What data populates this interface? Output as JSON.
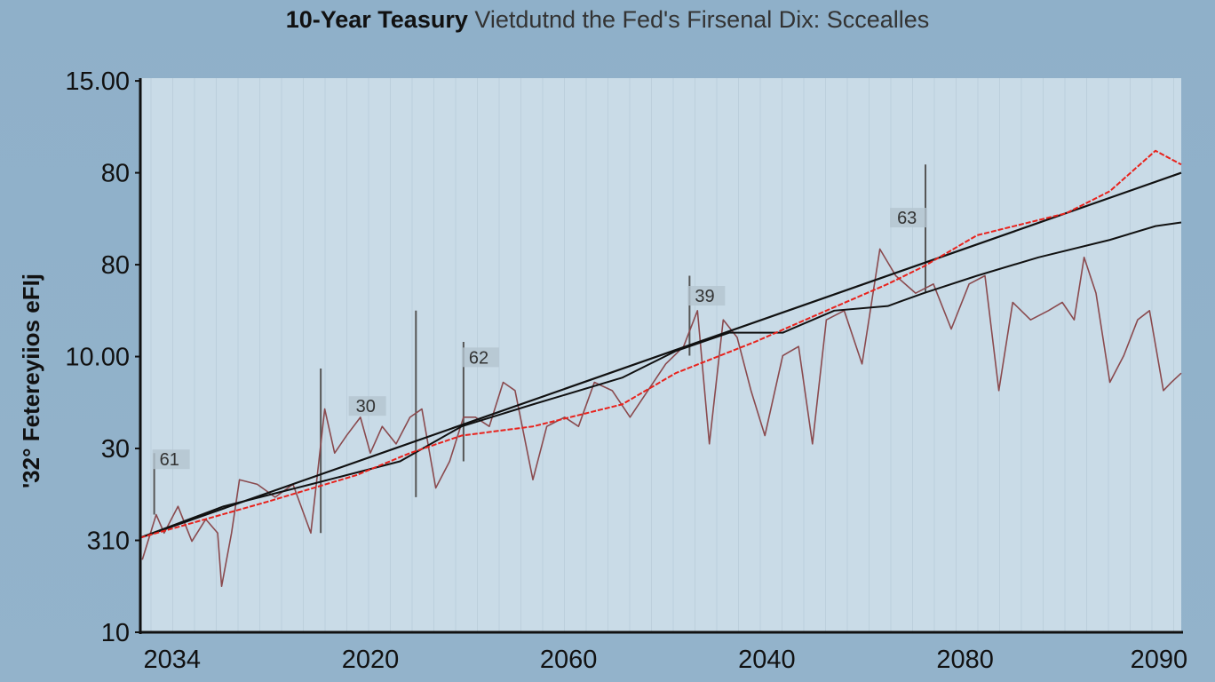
{
  "chart_data": {
    "type": "line",
    "title": "10-Year Teasury",
    "title_rest": "Vietdutnd the Fed's Firsenal Dix: Sccealles",
    "ylabel": "'32° Fetereyiios eFIj",
    "xlabel": "",
    "x_ticks": [
      {
        "v": 0,
        "label": "2034"
      },
      {
        "v": 1,
        "label": "2020"
      },
      {
        "v": 2,
        "label": "2060"
      },
      {
        "v": 3,
        "label": "2040"
      },
      {
        "v": 4,
        "label": "2080"
      },
      {
        "v": 5,
        "label": "2090"
      }
    ],
    "y_ticks": [
      {
        "v": 0,
        "label": "10"
      },
      {
        "v": 1,
        "label": "310"
      },
      {
        "v": 2,
        "label": "30"
      },
      {
        "v": 3,
        "label": "10.00"
      },
      {
        "v": 4,
        "label": "80"
      },
      {
        "v": 5,
        "label": "80"
      },
      {
        "v": 6,
        "label": "15.00"
      }
    ],
    "xlim": [
      -0.16,
      5.09
    ],
    "ylim": [
      0,
      6.03
    ],
    "grid": "vertical",
    "series": [
      {
        "name": "noisy-yield",
        "color": "#8a4a4e",
        "points": [
          [
            -0.15,
            0.79
          ],
          [
            -0.08,
            1.28
          ],
          [
            -0.04,
            1.08
          ],
          [
            0.03,
            1.37
          ],
          [
            0.1,
            0.99
          ],
          [
            0.17,
            1.23
          ],
          [
            0.23,
            1.08
          ],
          [
            0.25,
            0.5
          ],
          [
            0.3,
            1.08
          ],
          [
            0.34,
            1.66
          ],
          [
            0.43,
            1.61
          ],
          [
            0.52,
            1.47
          ],
          [
            0.61,
            1.61
          ],
          [
            0.7,
            1.08
          ],
          [
            0.77,
            2.43
          ],
          [
            0.82,
            1.95
          ],
          [
            0.88,
            2.14
          ],
          [
            0.95,
            2.34
          ],
          [
            1.0,
            1.95
          ],
          [
            1.06,
            2.24
          ],
          [
            1.13,
            2.05
          ],
          [
            1.2,
            2.34
          ],
          [
            1.26,
            2.43
          ],
          [
            1.33,
            1.57
          ],
          [
            1.4,
            1.86
          ],
          [
            1.47,
            2.34
          ],
          [
            1.53,
            2.34
          ],
          [
            1.6,
            2.24
          ],
          [
            1.67,
            2.72
          ],
          [
            1.73,
            2.63
          ],
          [
            1.82,
            1.66
          ],
          [
            1.89,
            2.24
          ],
          [
            1.98,
            2.34
          ],
          [
            2.05,
            2.24
          ],
          [
            2.13,
            2.72
          ],
          [
            2.22,
            2.63
          ],
          [
            2.31,
            2.34
          ],
          [
            2.4,
            2.63
          ],
          [
            2.49,
            2.92
          ],
          [
            2.58,
            3.11
          ],
          [
            2.65,
            3.5
          ],
          [
            2.71,
            2.05
          ],
          [
            2.78,
            3.4
          ],
          [
            2.85,
            3.21
          ],
          [
            2.92,
            2.63
          ],
          [
            2.99,
            2.14
          ],
          [
            3.08,
            3.01
          ],
          [
            3.16,
            3.11
          ],
          [
            3.23,
            2.05
          ],
          [
            3.3,
            3.4
          ],
          [
            3.39,
            3.5
          ],
          [
            3.48,
            2.92
          ],
          [
            3.57,
            4.17
          ],
          [
            3.65,
            3.88
          ],
          [
            3.75,
            3.69
          ],
          [
            3.84,
            3.79
          ],
          [
            3.93,
            3.3
          ],
          [
            4.02,
            3.79
          ],
          [
            4.1,
            3.88
          ],
          [
            4.17,
            2.63
          ],
          [
            4.24,
            3.59
          ],
          [
            4.33,
            3.4
          ],
          [
            4.42,
            3.5
          ],
          [
            4.49,
            3.59
          ],
          [
            4.55,
            3.4
          ],
          [
            4.6,
            4.08
          ],
          [
            4.66,
            3.69
          ],
          [
            4.73,
            2.72
          ],
          [
            4.8,
            3.01
          ],
          [
            4.87,
            3.4
          ],
          [
            4.93,
            3.5
          ],
          [
            5.0,
            2.63
          ],
          [
            5.04,
            2.72
          ],
          [
            5.09,
            2.82
          ]
        ]
      },
      {
        "name": "red-line",
        "color": "#e8221c",
        "points": [
          [
            -0.16,
            1.03
          ],
          [
            0.48,
            1.42
          ],
          [
            0.93,
            1.71
          ],
          [
            1.2,
            1.95
          ],
          [
            1.46,
            2.14
          ],
          [
            1.82,
            2.24
          ],
          [
            2.27,
            2.48
          ],
          [
            2.54,
            2.82
          ],
          [
            2.94,
            3.16
          ],
          [
            3.3,
            3.5
          ],
          [
            3.61,
            3.79
          ],
          [
            3.79,
            3.98
          ],
          [
            4.06,
            4.32
          ],
          [
            4.51,
            4.56
          ],
          [
            4.73,
            4.8
          ],
          [
            4.96,
            5.24
          ],
          [
            5.09,
            5.09
          ]
        ]
      },
      {
        "name": "black-line",
        "color": "#111111",
        "points": [
          [
            -0.16,
            1.03
          ],
          [
            0.26,
            1.37
          ],
          [
            0.7,
            1.61
          ],
          [
            1.15,
            1.86
          ],
          [
            1.46,
            2.24
          ],
          [
            1.82,
            2.48
          ],
          [
            2.27,
            2.77
          ],
          [
            2.54,
            3.06
          ],
          [
            2.81,
            3.26
          ],
          [
            3.08,
            3.26
          ],
          [
            3.34,
            3.5
          ],
          [
            3.61,
            3.55
          ],
          [
            3.79,
            3.69
          ],
          [
            4.06,
            3.88
          ],
          [
            4.37,
            4.08
          ],
          [
            4.73,
            4.27
          ],
          [
            4.96,
            4.42
          ],
          [
            5.09,
            4.46
          ]
        ]
      },
      {
        "name": "trend-line",
        "color": "#111111",
        "points": [
          [
            -0.16,
            1.03
          ],
          [
            5.09,
            5.0
          ]
        ]
      }
    ],
    "spikes": [
      [
        -0.09,
        1.95,
        1.28
      ],
      [
        0.75,
        2.87,
        1.08
      ],
      [
        1.23,
        3.5,
        1.47
      ],
      [
        1.47,
        3.16,
        1.86
      ],
      [
        2.61,
        3.88,
        3.01
      ],
      [
        3.8,
        5.09,
        3.69
      ]
    ],
    "annotations": [
      {
        "x": -0.09,
        "y": 1.95,
        "text": "61"
      },
      {
        "x": 0.9,
        "y": 2.53,
        "text": "30"
      },
      {
        "x": 1.47,
        "y": 3.06,
        "text": "62"
      },
      {
        "x": 2.61,
        "y": 3.73,
        "text": "39"
      },
      {
        "x": 3.63,
        "y": 4.58,
        "text": "63"
      }
    ]
  }
}
